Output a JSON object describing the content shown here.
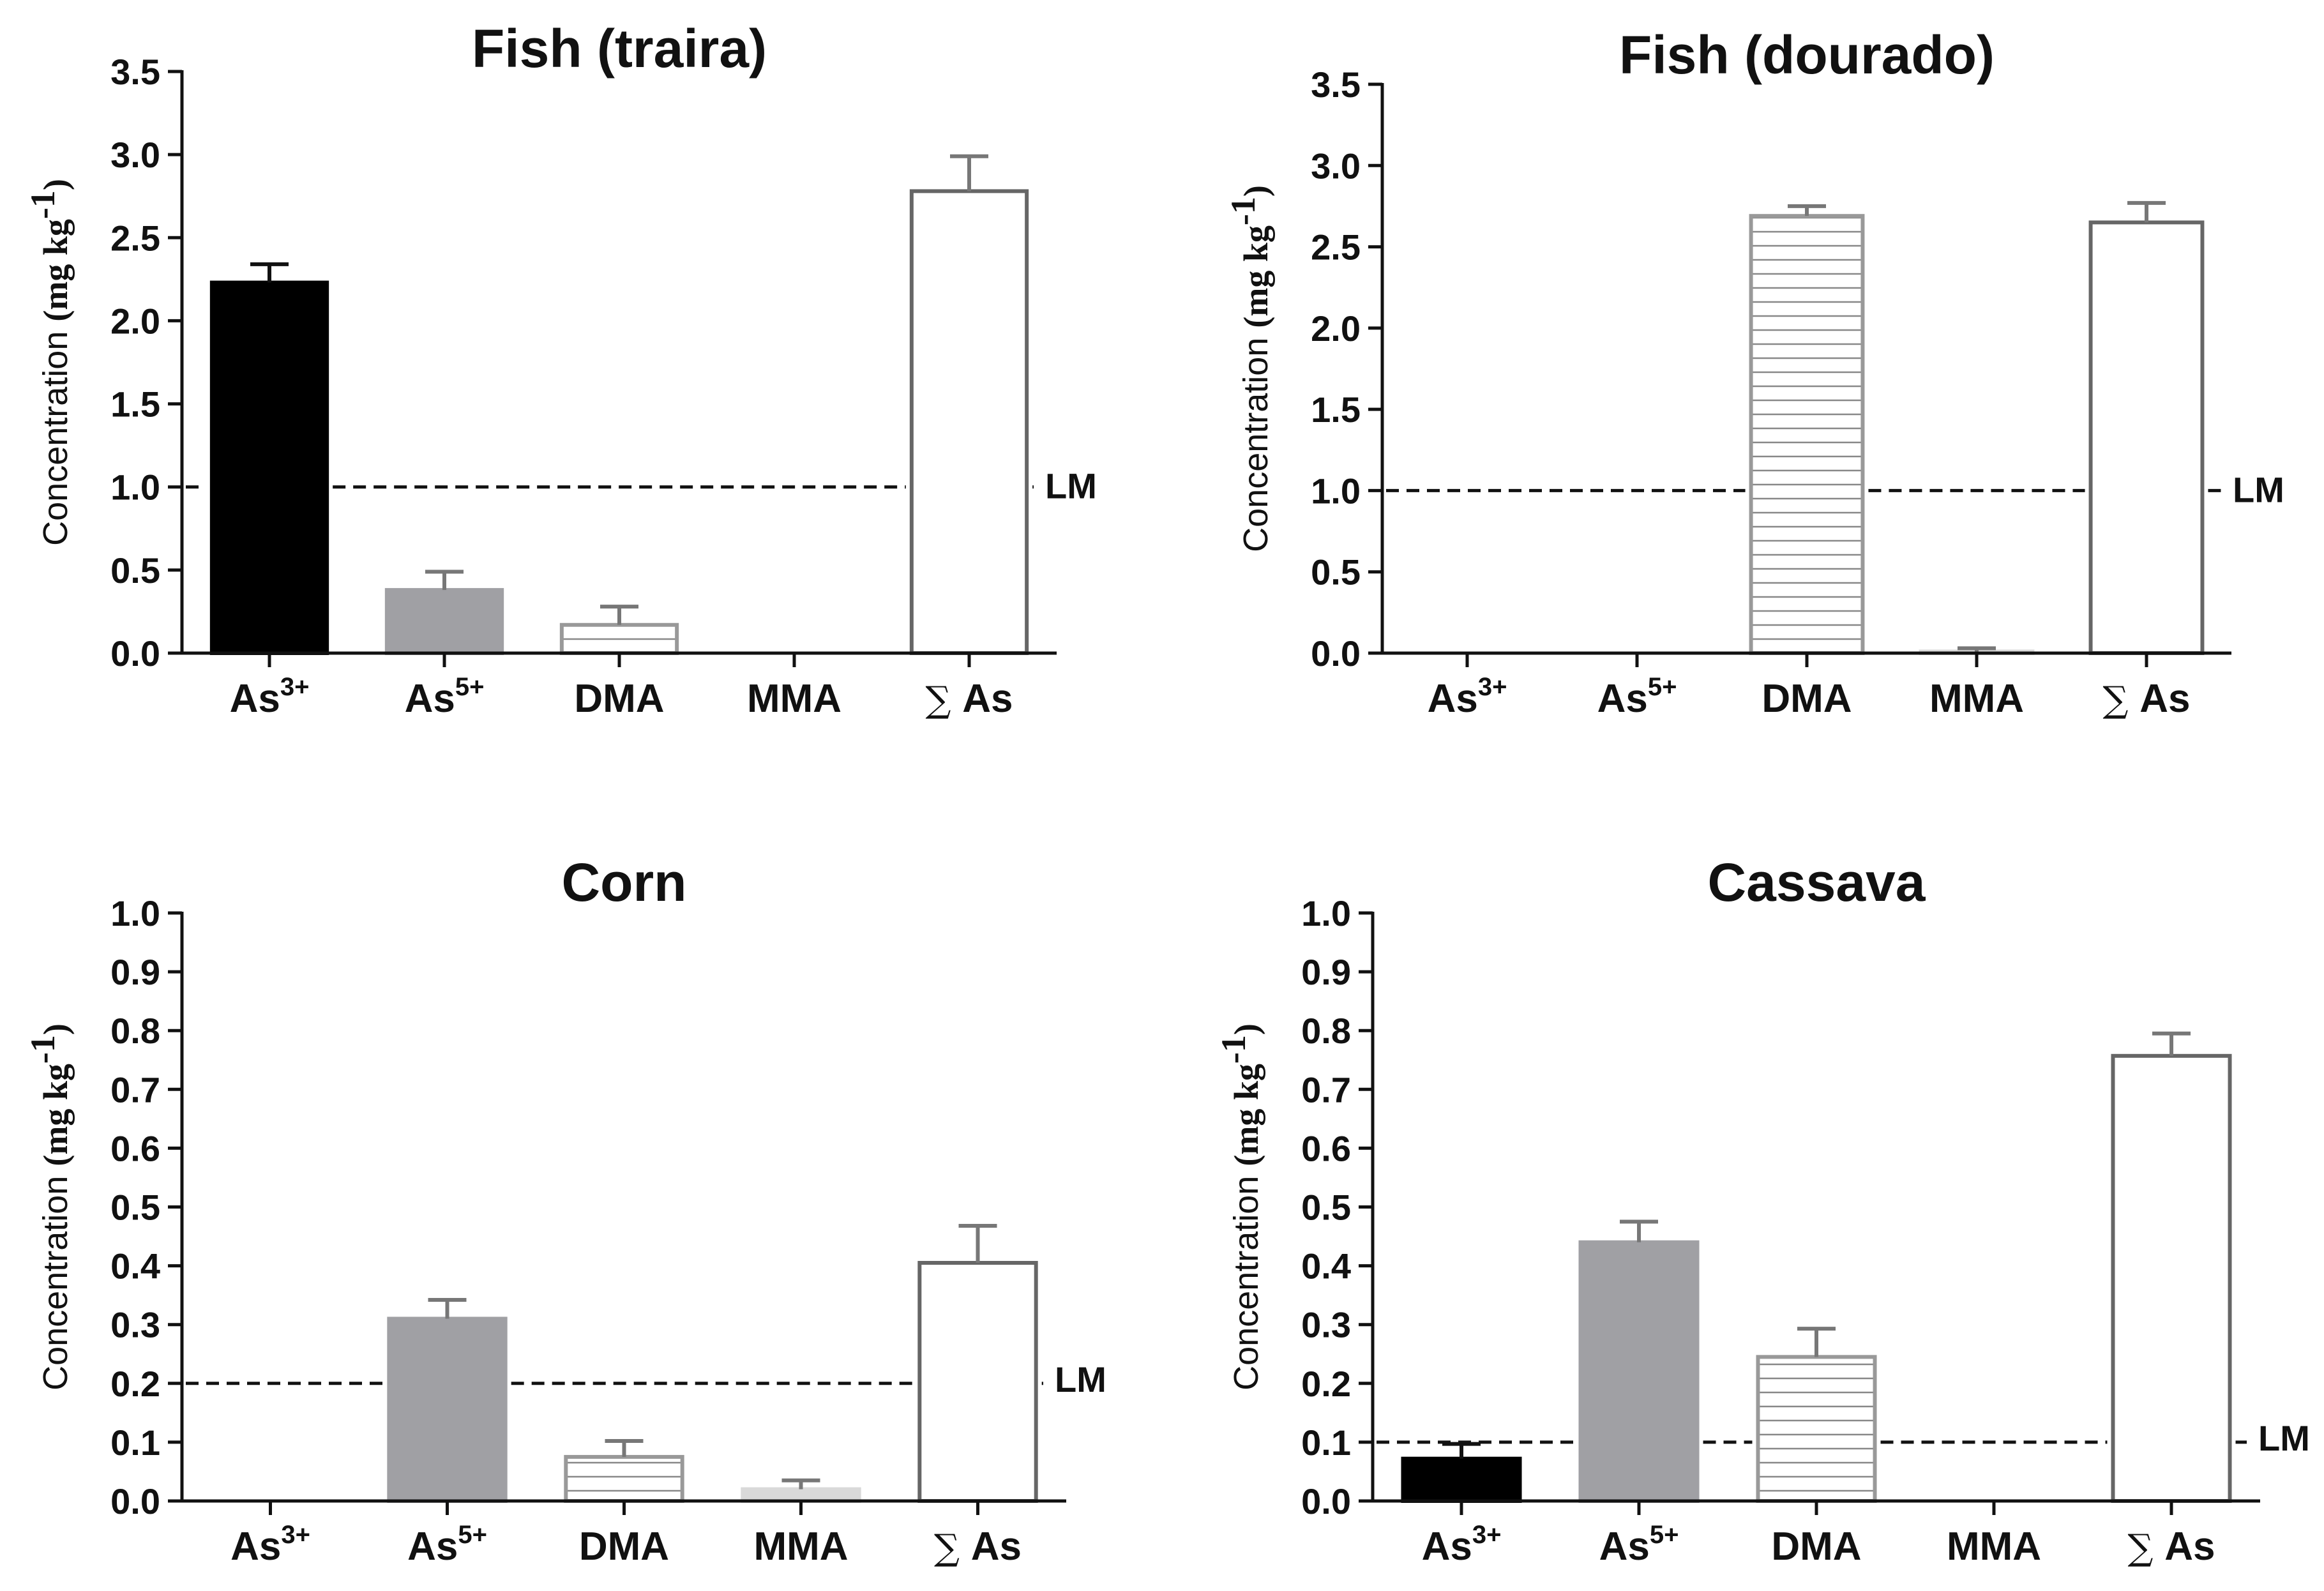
{
  "colors": {
    "black": "#000000",
    "gray": "#a0a0a4",
    "lightgray": "#d9d9d9",
    "outline": "#666666",
    "white": "#ffffff"
  },
  "chart_data": [
    {
      "type": "bar",
      "title": "Fish (traira)",
      "ylabel_main": "Concentration ",
      "ylabel_unit": "(mg kg",
      "ylabel_exp": "-1",
      "ylabel_close": ")",
      "ylim": [
        0,
        3.5
      ],
      "yticks": [
        "0.0",
        "0.5",
        "1.0",
        "1.5",
        "2.0",
        "2.5",
        "3.0",
        "3.5"
      ],
      "categories": [
        {
          "base": "As",
          "sup": "3+",
          "serif": false
        },
        {
          "base": "As",
          "sup": "5+",
          "serif": false
        },
        {
          "base": "DMA",
          "sup": "",
          "serif": false
        },
        {
          "base": "MMA",
          "sup": "",
          "serif": false
        },
        {
          "base": "∑ As",
          "sup": "",
          "serif": true
        }
      ],
      "values": [
        2.23,
        0.38,
        0.17,
        0.0,
        2.78
      ],
      "errors": [
        0.11,
        0.11,
        0.11,
        0.0,
        0.21
      ],
      "styles": [
        "black",
        "gray",
        "striped",
        "none",
        "white"
      ],
      "limit": 1.0,
      "limit_label": "LM"
    },
    {
      "type": "bar",
      "title": "Fish (dourado)",
      "ylabel_main": "Concentration ",
      "ylabel_unit": "(mg kg",
      "ylabel_exp": "-1",
      "ylabel_close": ")",
      "ylim": [
        0,
        3.5
      ],
      "yticks": [
        "0.0",
        "0.5",
        "1.0",
        "1.5",
        "2.0",
        "2.5",
        "3.0",
        "3.5"
      ],
      "categories": [
        {
          "base": "As",
          "sup": "3+",
          "serif": false
        },
        {
          "base": "As",
          "sup": "5+",
          "serif": false
        },
        {
          "base": "DMA",
          "sup": "",
          "serif": false
        },
        {
          "base": "MMA",
          "sup": "",
          "serif": false
        },
        {
          "base": "∑ As",
          "sup": "",
          "serif": true
        }
      ],
      "values": [
        0.0,
        0.0,
        2.69,
        0.01,
        2.65
      ],
      "errors": [
        0.0,
        0.0,
        0.06,
        0.02,
        0.12
      ],
      "styles": [
        "none",
        "none",
        "striped",
        "lightgray",
        "white"
      ],
      "limit": 1.0,
      "limit_label": "LM"
    },
    {
      "type": "bar",
      "title": "Corn",
      "ylabel_main": "Concentration ",
      "ylabel_unit": "(mg kg",
      "ylabel_exp": "-1",
      "ylabel_close": ")",
      "ylim": [
        0,
        1.0
      ],
      "yticks": [
        "0.0",
        "0.1",
        "0.2",
        "0.3",
        "0.4",
        "0.5",
        "0.6",
        "0.7",
        "0.8",
        "0.9",
        "1.0"
      ],
      "categories": [
        {
          "base": "As",
          "sup": "3+",
          "serif": false
        },
        {
          "base": "As",
          "sup": "5+",
          "serif": false
        },
        {
          "base": "DMA",
          "sup": "",
          "serif": false
        },
        {
          "base": "MMA",
          "sup": "",
          "serif": false
        },
        {
          "base": "∑ As",
          "sup": "",
          "serif": true
        }
      ],
      "values": [
        0.0,
        0.31,
        0.075,
        0.02,
        0.405
      ],
      "errors": [
        0.0,
        0.032,
        0.027,
        0.015,
        0.063
      ],
      "styles": [
        "none",
        "gray",
        "striped",
        "lightgray",
        "white"
      ],
      "limit": 0.2,
      "limit_label": "LM"
    },
    {
      "type": "bar",
      "title": "Cassava",
      "ylabel_main": "Concentration ",
      "ylabel_unit": "(mg kg",
      "ylabel_exp": "-1",
      "ylabel_close": ")",
      "ylim": [
        0,
        1.0
      ],
      "yticks": [
        "0.0",
        "0.1",
        "0.2",
        "0.3",
        "0.4",
        "0.5",
        "0.6",
        "0.7",
        "0.8",
        "0.9",
        "1.0"
      ],
      "categories": [
        {
          "base": "As",
          "sup": "3+",
          "serif": false
        },
        {
          "base": "As",
          "sup": "5+",
          "serif": false
        },
        {
          "base": "DMA",
          "sup": "",
          "serif": false
        },
        {
          "base": "MMA",
          "sup": "",
          "serif": false
        },
        {
          "base": "∑ As",
          "sup": "",
          "serif": true
        }
      ],
      "values": [
        0.072,
        0.44,
        0.245,
        0.0,
        0.757
      ],
      "errors": [
        0.025,
        0.035,
        0.048,
        0.0,
        0.038
      ],
      "styles": [
        "black",
        "gray",
        "striped",
        "none",
        "white"
      ],
      "limit": 0.1,
      "limit_label": "LM"
    }
  ]
}
